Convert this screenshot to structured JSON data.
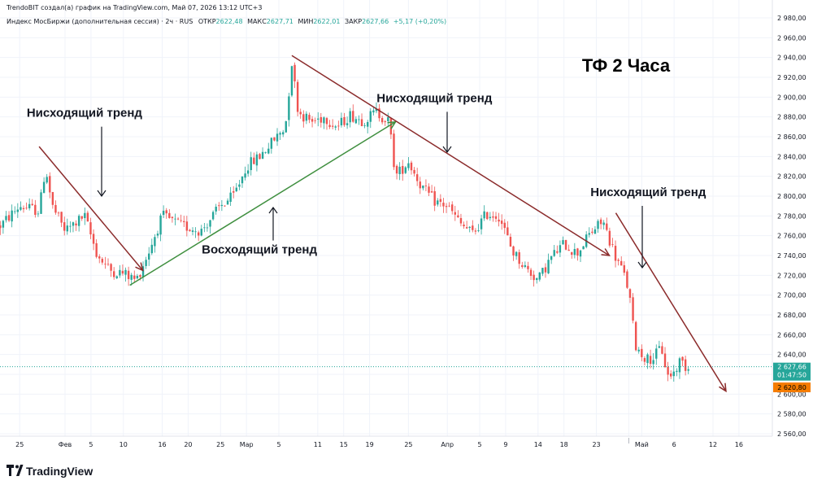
{
  "header": {
    "source_line": "TrendoBIT создал(а) график на TradingView.com, Май 07, 2026 13:12 UTC+3",
    "symbol": "Индекс МосБиржи (дополнительная сессия) · 2ч · RUS",
    "o_label": "ОТКР",
    "o_value": "2622,48",
    "h_label": "МАКС",
    "h_value": "2627,71",
    "l_label": "МИН",
    "l_value": "2622,01",
    "c_label": "ЗАКР",
    "c_value": "2627,66",
    "change": "+5,17 (+0,20%)"
  },
  "brand": {
    "name": "TradingView"
  },
  "colors": {
    "up": "#26a69a",
    "down": "#ef5350",
    "down_line": "#8b2b2b",
    "up_line": "#3f8f3f",
    "price_label": "#26a69a",
    "low_label": "#f57c00",
    "grid": "#f0f3fa"
  },
  "chart_data": {
    "type": "candlestick",
    "ylim": [
      2550,
      2990
    ],
    "y_ticks": [
      "2 980,00",
      "2 960,00",
      "2 940,00",
      "2 920,00",
      "2 900,00",
      "2 880,00",
      "2 860,00",
      "2 840,00",
      "2 820,00",
      "2 800,00",
      "2 780,00",
      "2 760,00",
      "2 740,00",
      "2 720,00",
      "2 700,00",
      "2 680,00",
      "2 660,00",
      "2 640,00",
      "2 620,00",
      "2 600,00",
      "2 580,00",
      "2 560,00"
    ],
    "y_tick_values": [
      2980,
      2960,
      2940,
      2920,
      2900,
      2880,
      2860,
      2840,
      2820,
      2800,
      2780,
      2760,
      2740,
      2720,
      2700,
      2680,
      2660,
      2640,
      2620,
      2600,
      2580,
      2560
    ],
    "x_ticks": [
      "25",
      "Фев",
      "5",
      "10",
      "16",
      "20",
      "25",
      "Мар",
      "5",
      "11",
      "15",
      "19",
      "25",
      "Апр",
      "5",
      "9",
      "14",
      "18",
      "23",
      "",
      "Май",
      "6",
      "12",
      "16"
    ],
    "x_tick_days": [
      -7,
      0,
      4,
      9,
      15,
      19,
      24,
      28,
      33,
      39,
      43,
      47,
      53,
      59,
      64,
      68,
      73,
      77,
      82,
      87,
      89,
      94,
      100,
      104
    ],
    "x_range_days": [
      -10,
      109
    ],
    "last_day": 96.5,
    "price_path": [
      [
        -10,
        2770
      ],
      [
        -7,
        2790
      ],
      [
        -4,
        2785
      ],
      [
        -3,
        2830
      ],
      [
        -2,
        2790
      ],
      [
        0,
        2765
      ],
      [
        3,
        2780
      ],
      [
        5,
        2740
      ],
      [
        7,
        2725
      ],
      [
        9,
        2722
      ],
      [
        11,
        2715
      ],
      [
        13,
        2745
      ],
      [
        15,
        2780
      ],
      [
        18,
        2770
      ],
      [
        21,
        2765
      ],
      [
        24,
        2790
      ],
      [
        26,
        2800
      ],
      [
        28,
        2830
      ],
      [
        30,
        2840
      ],
      [
        32,
        2855
      ],
      [
        34,
        2870
      ],
      [
        35,
        2935
      ],
      [
        36,
        2885
      ],
      [
        38,
        2875
      ],
      [
        40,
        2880
      ],
      [
        42,
        2870
      ],
      [
        44,
        2882
      ],
      [
        46,
        2876
      ],
      [
        48,
        2885
      ],
      [
        50,
        2875
      ],
      [
        51,
        2820
      ],
      [
        53,
        2835
      ],
      [
        55,
        2810
      ],
      [
        57,
        2795
      ],
      [
        59,
        2790
      ],
      [
        61,
        2772
      ],
      [
        63,
        2762
      ],
      [
        65,
        2782
      ],
      [
        67,
        2780
      ],
      [
        69,
        2745
      ],
      [
        71,
        2728
      ],
      [
        73,
        2715
      ],
      [
        75,
        2738
      ],
      [
        77,
        2752
      ],
      [
        79,
        2742
      ],
      [
        81,
        2762
      ],
      [
        83,
        2775
      ],
      [
        85,
        2738
      ],
      [
        86,
        2725
      ],
      [
        87,
        2705
      ],
      [
        88,
        2650
      ],
      [
        89,
        2640
      ],
      [
        90,
        2635
      ],
      [
        91,
        2638
      ],
      [
        92,
        2648
      ],
      [
        93,
        2618
      ],
      [
        94,
        2622
      ],
      [
        95,
        2635
      ],
      [
        96,
        2626
      ],
      [
        96.5,
        2627.66
      ]
    ],
    "current_price_label": "2 627,66",
    "countdown_label": "01:47:50",
    "low_price_label": "2 620,80",
    "current_price": 2627.66,
    "low_price": 2620.8
  },
  "drawings": {
    "trend1": {
      "from": [
        -4,
        2850
      ],
      "to": [
        12,
        2725
      ]
    },
    "trend2": {
      "from": [
        10,
        2710
      ],
      "to": [
        51,
        2875
      ]
    },
    "trend3": {
      "from": [
        35,
        2942
      ],
      "to": [
        84,
        2740
      ]
    },
    "trend4": {
      "from": [
        85,
        2783
      ],
      "to": [
        102,
        2603
      ]
    },
    "label1": {
      "text": "Нисходящий тренд",
      "anchor_day": 3,
      "anchor_price": 2880
    },
    "label2": {
      "text": "Восходящий тренд",
      "anchor_day": 30,
      "anchor_price": 2742
    },
    "label3": {
      "text": "Нисходящий тренд",
      "anchor_day": 57,
      "anchor_price": 2895
    },
    "label4": {
      "text": "Нисходящий тренд",
      "anchor_day": 90,
      "anchor_price": 2800
    },
    "tf_label": "ТФ 2 Часа"
  }
}
